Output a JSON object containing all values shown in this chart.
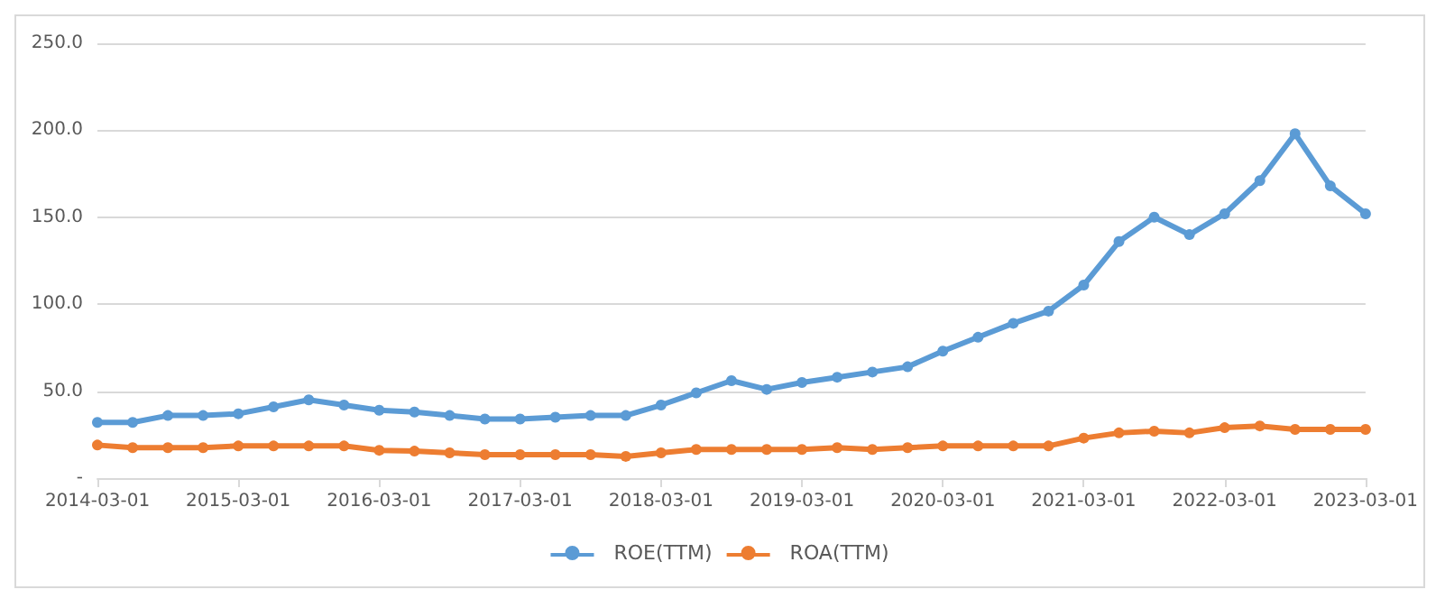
{
  "chart_data": {
    "type": "line",
    "categories": [
      "2014-03-01",
      null,
      null,
      null,
      "2015-03-01",
      null,
      null,
      null,
      "2016-03-01",
      null,
      null,
      null,
      "2017-03-01",
      null,
      null,
      null,
      "2018-03-01",
      null,
      null,
      null,
      "2019-03-01",
      null,
      null,
      null,
      "2020-03-01",
      null,
      null,
      null,
      "2021-03-01",
      null,
      null,
      null,
      "2022-03-01",
      null,
      null,
      null,
      "2023-03-01"
    ],
    "series": [
      {
        "name": "ROE(TTM)",
        "color": "#5b9bd5",
        "values": [
          32,
          32,
          36,
          36,
          37,
          41,
          45,
          42,
          39,
          38,
          36,
          34,
          34,
          35,
          36,
          36,
          42,
          49,
          56,
          51,
          55,
          58,
          61,
          64,
          73,
          81,
          89,
          96,
          111,
          136,
          150,
          140,
          152,
          171,
          198,
          168,
          152
        ]
      },
      {
        "name": "ROA(TTM)",
        "color": "#ed7d31",
        "values": [
          19,
          17.5,
          17.5,
          17.5,
          18.5,
          18.5,
          18.5,
          18.5,
          16,
          15.5,
          14.5,
          13.5,
          13.5,
          13.5,
          13.5,
          12.5,
          14.5,
          16.5,
          16.5,
          16.5,
          16.5,
          17.5,
          16.5,
          17.5,
          18.5,
          18.5,
          18.5,
          18.5,
          23,
          26,
          27,
          26,
          29,
          30,
          28,
          28,
          28
        ]
      }
    ],
    "ylim": [
      0,
      250
    ],
    "yticks": [
      {
        "value": 0,
        "label": "-"
      },
      {
        "value": 50,
        "label": "50.0"
      },
      {
        "value": 100,
        "label": "100.0"
      },
      {
        "value": 150,
        "label": "150.0"
      },
      {
        "value": 200,
        "label": "200.0"
      },
      {
        "value": 250,
        "label": "250.0"
      }
    ],
    "grid": "y",
    "legend": "bottom",
    "marker": "circle",
    "line_style": "solid"
  }
}
